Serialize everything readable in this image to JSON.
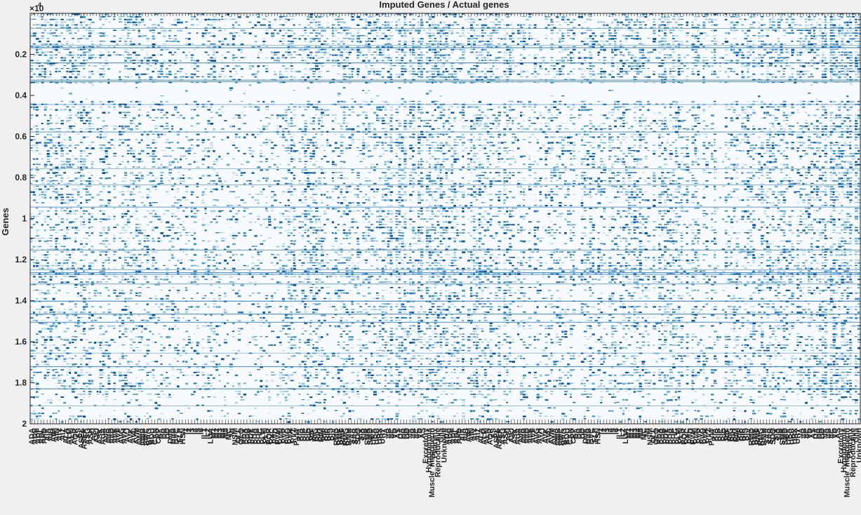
{
  "chart_data": {
    "type": "heatmap",
    "title": "Imputed Genes / Actual genes",
    "ylabel": "Genes",
    "xlabel": "",
    "ylim": [
      0,
      20000
    ],
    "y_exponent_label": "×10",
    "y_exponent_power": "4",
    "y_ticks": [
      {
        "value": 2000,
        "label": "0.2"
      },
      {
        "value": 4000,
        "label": "0.4"
      },
      {
        "value": 6000,
        "label": "0.6"
      },
      {
        "value": 8000,
        "label": "0.8"
      },
      {
        "value": 10000,
        "label": "1"
      },
      {
        "value": 12000,
        "label": "1.2"
      },
      {
        "value": 14000,
        "label": "1.4"
      },
      {
        "value": 16000,
        "label": "1.6"
      },
      {
        "value": 18000,
        "label": "1.8"
      },
      {
        "value": 20000,
        "label": "2"
      }
    ],
    "x_tick_labels_group1": [
      "ADA",
      "ADE",
      "ADF",
      "ADL",
      "AFD",
      "AIA",
      "AIB",
      "AIM",
      "AIN",
      "AIY",
      "AIZ",
      "ALA",
      "ALM",
      "ALN",
      "AQR",
      "AS",
      "ASEL",
      "ASER",
      "ASG",
      "ASH",
      "ASI",
      "ASJ",
      "ASK",
      "AUA",
      "AVA",
      "AVB",
      "AVD",
      "AVE",
      "AVF",
      "AVG",
      "AVH",
      "AVJ",
      "AVK",
      "AVL",
      "AVM",
      "AWA",
      "AWB",
      "AWC",
      "BAG",
      "BDU",
      "CAN",
      "CEP",
      "DA",
      "DB",
      "DD",
      "DVA",
      "DVB",
      "DVC",
      "FLP",
      "HSN",
      "I1",
      "I2",
      "I3",
      "I4",
      "I5",
      "I6",
      "IL1",
      "IL2",
      "LUA",
      "M1",
      "M2",
      "M3",
      "M4",
      "M5",
      "MC",
      "MI",
      "NSM",
      "OLL",
      "OLQ",
      "PDA",
      "PDB",
      "PDE",
      "PHA",
      "PHB",
      "PHC",
      "PLM",
      "PLN",
      "PQR",
      "PVC",
      "PVD",
      "PVM",
      "PVN",
      "PVP",
      "PVQ",
      "PVR",
      "PVT",
      "PVW",
      "RIA",
      "RIB",
      "RIC",
      "RID",
      "RIF",
      "RIG",
      "RIH",
      "RIM",
      "RIP",
      "RIR",
      "RIS",
      "RIV",
      "RMD",
      "RME",
      "RMF",
      "RMG",
      "RMH",
      "SAA",
      "SAB",
      "SDQ",
      "SIA",
      "SIB",
      "SMB",
      "SMD",
      "URA",
      "URB",
      "URX",
      "URY",
      "VA",
      "VB",
      "VC",
      "VD",
      "AS",
      "DA",
      "DB",
      "DD",
      "VA",
      "VB",
      "VC",
      "VD",
      "AS"
    ],
    "x_tick_labels_group1_tail": [
      "Excretory",
      "Hypodermis",
      "Muscle_mesoderm",
      "Pharynx",
      "Reproductive",
      "Glia",
      "Unknown"
    ],
    "x_tick_labels_group2": [
      "ADA",
      "ADE",
      "ADF",
      "ADL",
      "AFD",
      "AIA",
      "AIB",
      "AIM",
      "AIN",
      "AIY",
      "AIZ",
      "ALA",
      "ALM",
      "ALN",
      "AQR",
      "AS",
      "ASEL",
      "ASER",
      "ASG",
      "ASH",
      "ASI",
      "ASJ",
      "ASK",
      "AUA",
      "AVA",
      "AVB",
      "AVD",
      "AVE",
      "AVF",
      "AVG",
      "AVH",
      "AVJ",
      "AVK",
      "AVL",
      "AVM",
      "AWA",
      "AWB",
      "AWC",
      "BAG",
      "BDU",
      "CAN",
      "CEP",
      "DA",
      "DB",
      "DD",
      "DVA",
      "DVB",
      "DVC",
      "FLP",
      "HSN",
      "I1",
      "I2",
      "I3",
      "I4",
      "I5",
      "I6",
      "IL1",
      "IL2",
      "LUA",
      "M1",
      "M2",
      "M3",
      "M4",
      "M5",
      "MC",
      "MI",
      "NSM",
      "OLL",
      "OLQ",
      "PDA",
      "PDB",
      "PDE",
      "PHA",
      "PHB",
      "PHC",
      "PLM",
      "PLN",
      "PQR",
      "PVC",
      "PVD",
      "PVM",
      "PVN",
      "PVP",
      "PVQ",
      "PVR",
      "PVT",
      "PVW",
      "RIA",
      "RIB",
      "RIC",
      "RID",
      "RIF",
      "RIG",
      "RIH",
      "RIM",
      "RIP",
      "RIR",
      "RIS",
      "RIV",
      "RMD",
      "RME",
      "RMF",
      "RMG",
      "RMH",
      "SAA",
      "SAB",
      "SDQ",
      "SIA",
      "SIB",
      "SMB",
      "SMD",
      "URA",
      "URB",
      "URX",
      "URY",
      "VA",
      "VB",
      "VC",
      "VD",
      "AS",
      "DA",
      "DB",
      "DD",
      "VA",
      "VB",
      "VC",
      "VD",
      "AS"
    ],
    "x_tick_labels_group2_tail": [
      "Excretory",
      "Hypodermis",
      "Muscle_mesoderm",
      "Pharynx",
      "Reproductive",
      "Glia",
      "Unknown"
    ],
    "colormap": {
      "low": "#f7fbff",
      "mid": "#6baed6",
      "high": "#08519c"
    },
    "grid": false,
    "legend": "none"
  }
}
